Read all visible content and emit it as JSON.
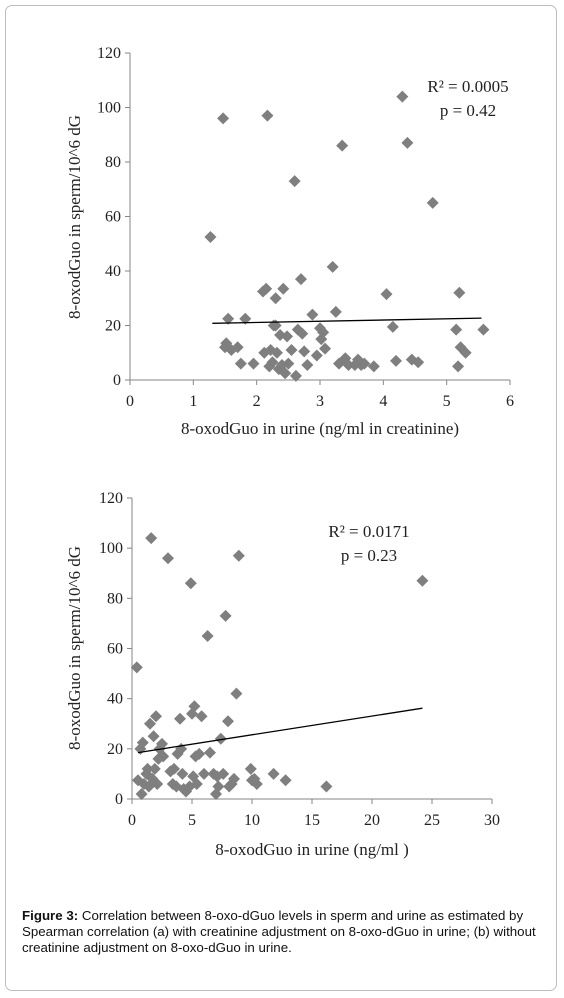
{
  "chart_data": [
    {
      "type": "scatter",
      "xlabel": "8-oxodGuo in urine (ng/ml in creatinine)",
      "ylabel": "8-oxodGuo in sperm/10^6 dG",
      "xlim": [
        0,
        6
      ],
      "ylim": [
        0,
        120
      ],
      "xticks": [
        "0",
        "1",
        "2",
        "3",
        "4",
        "5",
        "6"
      ],
      "yticks": [
        "0",
        "20",
        "40",
        "60",
        "80",
        "100",
        "120"
      ],
      "annotation": [
        "R² = 0.0005",
        "p = 0.42"
      ],
      "marker_color": "#7f7f7f",
      "trendline": {
        "x": [
          1.3,
          5.55
        ],
        "y": [
          20.8,
          22.7
        ]
      },
      "points": [
        [
          1.27,
          52.5
        ],
        [
          1.47,
          96
        ],
        [
          1.5,
          12
        ],
        [
          1.52,
          13.5
        ],
        [
          1.55,
          22.5
        ],
        [
          1.6,
          11
        ],
        [
          1.7,
          12
        ],
        [
          1.75,
          6
        ],
        [
          1.82,
          22.5
        ],
        [
          1.95,
          6
        ],
        [
          2.1,
          32.5
        ],
        [
          2.12,
          10
        ],
        [
          2.15,
          33.5
        ],
        [
          2.17,
          97
        ],
        [
          2.2,
          5
        ],
        [
          2.22,
          11
        ],
        [
          2.25,
          6.5
        ],
        [
          2.27,
          20
        ],
        [
          2.3,
          20
        ],
        [
          2.3,
          30
        ],
        [
          2.32,
          10
        ],
        [
          2.35,
          4
        ],
        [
          2.37,
          16.5
        ],
        [
          2.4,
          5.5
        ],
        [
          2.42,
          33.5
        ],
        [
          2.45,
          2.5
        ],
        [
          2.48,
          16
        ],
        [
          2.5,
          6
        ],
        [
          2.55,
          11
        ],
        [
          2.6,
          73
        ],
        [
          2.62,
          1.5
        ],
        [
          2.65,
          18.5
        ],
        [
          2.7,
          37
        ],
        [
          2.72,
          17
        ],
        [
          2.75,
          10.5
        ],
        [
          2.8,
          5.5
        ],
        [
          2.88,
          24
        ],
        [
          2.95,
          9
        ],
        [
          3.0,
          19
        ],
        [
          3.02,
          15
        ],
        [
          3.05,
          17.5
        ],
        [
          3.08,
          11.5
        ],
        [
          3.2,
          41.5
        ],
        [
          3.25,
          25
        ],
        [
          3.3,
          6
        ],
        [
          3.35,
          86
        ],
        [
          3.38,
          7.5
        ],
        [
          3.4,
          8
        ],
        [
          3.45,
          5.5
        ],
        [
          3.55,
          5.5
        ],
        [
          3.6,
          7.5
        ],
        [
          3.65,
          5.5
        ],
        [
          3.7,
          6
        ],
        [
          3.85,
          5
        ],
        [
          4.05,
          31.5
        ],
        [
          4.15,
          19.5
        ],
        [
          4.2,
          7
        ],
        [
          4.3,
          104
        ],
        [
          4.38,
          87
        ],
        [
          4.45,
          7.5
        ],
        [
          4.55,
          6.5
        ],
        [
          4.78,
          65
        ],
        [
          5.15,
          18.5
        ],
        [
          5.18,
          5
        ],
        [
          5.2,
          32
        ],
        [
          5.22,
          12
        ],
        [
          5.3,
          10
        ],
        [
          5.58,
          18.5
        ]
      ]
    },
    {
      "type": "scatter",
      "xlabel": "8-oxodGuo in urine (ng/ml )",
      "ylabel": "8-oxodGuo in sperm/10^6 dG",
      "xlim": [
        0,
        30
      ],
      "ylim": [
        0,
        120
      ],
      "xticks": [
        "0",
        "5",
        "10",
        "15",
        "20",
        "25",
        "30"
      ],
      "yticks": [
        "0",
        "20",
        "40",
        "60",
        "80",
        "100",
        "120"
      ],
      "annotation": [
        "R² = 0.0171",
        "p = 0.23"
      ],
      "marker_color": "#7f7f7f",
      "trendline": {
        "x": [
          0.5,
          24.2
        ],
        "y": [
          18.5,
          36.2
        ]
      },
      "points": [
        [
          0.4,
          52.5
        ],
        [
          0.5,
          7.5
        ],
        [
          0.7,
          20
        ],
        [
          0.8,
          2
        ],
        [
          0.9,
          22.5
        ],
        [
          1.0,
          6
        ],
        [
          1.2,
          10
        ],
        [
          1.3,
          12
        ],
        [
          1.4,
          5
        ],
        [
          1.5,
          30
        ],
        [
          1.6,
          104
        ],
        [
          1.7,
          8
        ],
        [
          1.8,
          25
        ],
        [
          1.9,
          12
        ],
        [
          2.0,
          33
        ],
        [
          2.1,
          6
        ],
        [
          2.2,
          16
        ],
        [
          2.3,
          20
        ],
        [
          2.5,
          22
        ],
        [
          2.6,
          17
        ],
        [
          3.0,
          96
        ],
        [
          3.2,
          11
        ],
        [
          3.4,
          6
        ],
        [
          3.5,
          12
        ],
        [
          3.7,
          5
        ],
        [
          3.8,
          18
        ],
        [
          4.0,
          32
        ],
        [
          4.1,
          20
        ],
        [
          4.2,
          10
        ],
        [
          4.3,
          4
        ],
        [
          4.5,
          3
        ],
        [
          4.8,
          5
        ],
        [
          4.9,
          86
        ],
        [
          5.0,
          34
        ],
        [
          5.1,
          9
        ],
        [
          5.2,
          37
        ],
        [
          5.3,
          17
        ],
        [
          5.4,
          6
        ],
        [
          5.6,
          18
        ],
        [
          5.8,
          33
        ],
        [
          6.0,
          10
        ],
        [
          6.5,
          18.5
        ],
        [
          6.3,
          65
        ],
        [
          6.8,
          10
        ],
        [
          7.0,
          2
        ],
        [
          7.1,
          9
        ],
        [
          7.2,
          5
        ],
        [
          7.4,
          24
        ],
        [
          7.6,
          10
        ],
        [
          7.8,
          73
        ],
        [
          8.0,
          31
        ],
        [
          8.1,
          5
        ],
        [
          8.3,
          6
        ],
        [
          8.5,
          8
        ],
        [
          8.7,
          42
        ],
        [
          8.9,
          97
        ],
        [
          9.9,
          12
        ],
        [
          10.0,
          7.5
        ],
        [
          10.2,
          8
        ],
        [
          10.4,
          6
        ],
        [
          11.8,
          10
        ],
        [
          12.8,
          7.5
        ],
        [
          16.2,
          5
        ],
        [
          24.2,
          87
        ]
      ]
    }
  ],
  "caption": {
    "label": "Figure 3:",
    "text": " Correlation between 8-oxo-dGuo levels in sperm and urine as estimated by Spearman correlation (a) with creatinine adjustment on 8-oxo-dGuo in urine; (b) without creatinine adjustment on 8-oxo-dGuo in urine."
  }
}
